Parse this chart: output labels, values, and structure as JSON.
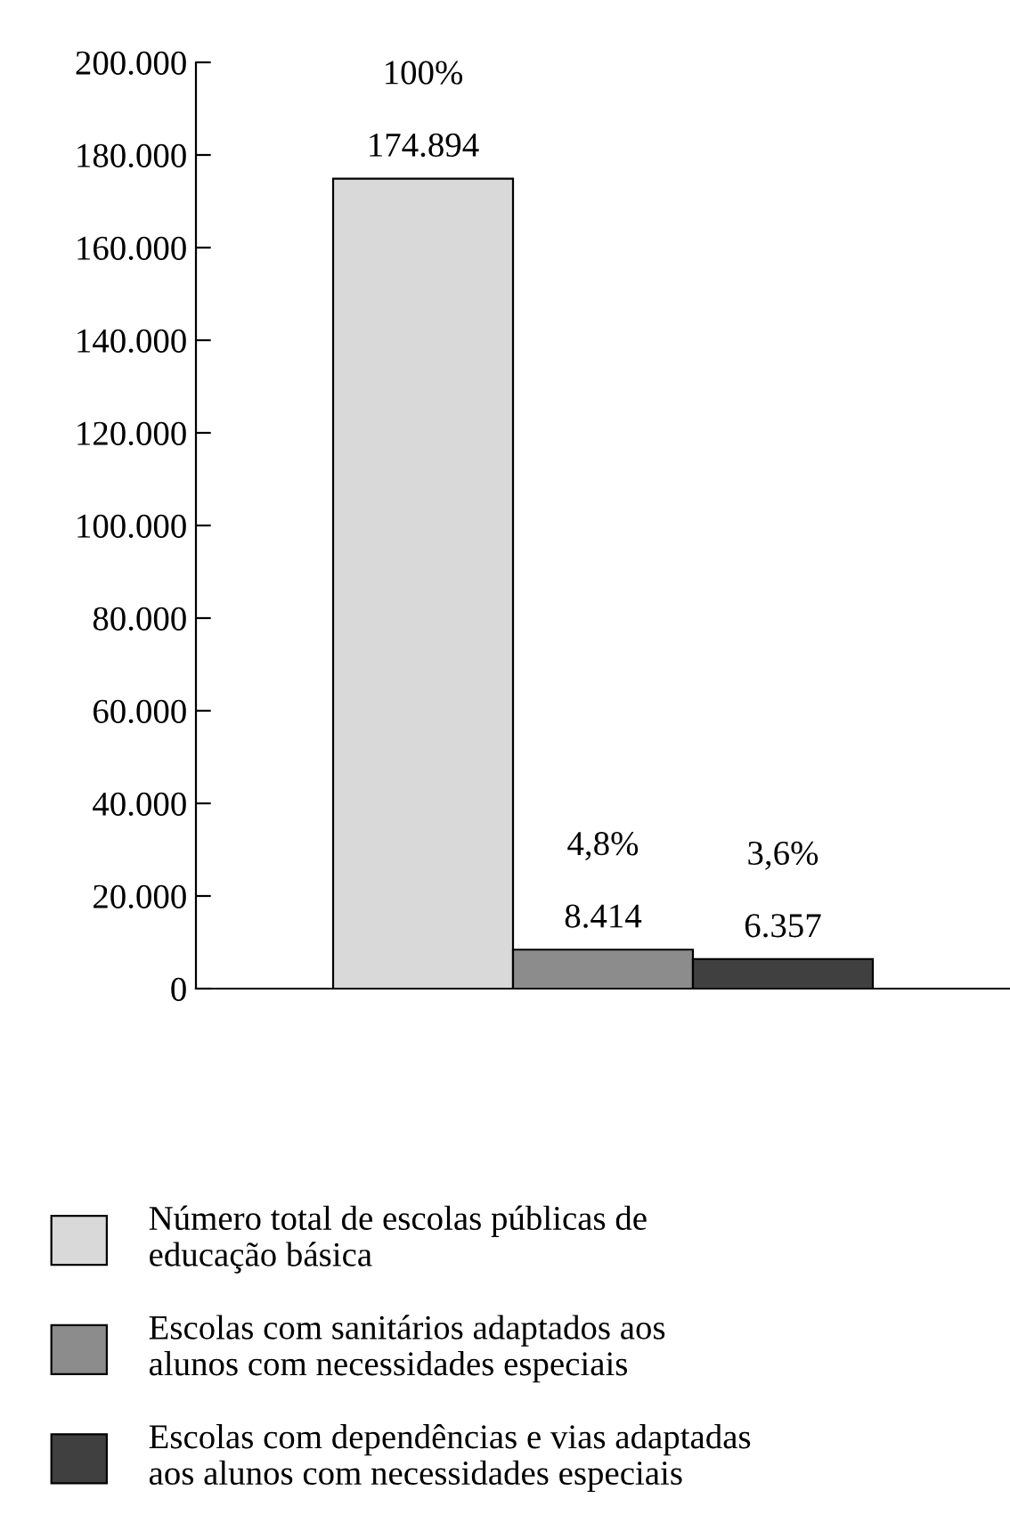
{
  "chart_data": {
    "type": "bar",
    "categories": [
      null
    ],
    "series": [
      {
        "name": "Número total de escolas públicas de\neducação básica",
        "color": "#d9d9d9",
        "values": [
          174894
        ],
        "value_labels": [
          "100%\n\n174.894"
        ]
      },
      {
        "name": "Escolas com sanitários adaptados aos\nalunos com necessidades especiais",
        "color": "#8c8c8c",
        "values": [
          8414
        ],
        "value_labels": [
          "4,8%\n\n8.414"
        ]
      },
      {
        "name": "Escolas com dependências e vias adaptadas\naos alunos com necessidades especiais",
        "color": "#404040",
        "values": [
          6357
        ],
        "value_labels": [
          "3,6%\n\n6.357"
        ]
      }
    ],
    "ylim": [
      0,
      200000
    ],
    "yticks": [
      {
        "value": 0,
        "label": "0"
      },
      {
        "value": 20000,
        "label": "20.000"
      },
      {
        "value": 40000,
        "label": "40.000"
      },
      {
        "value": 60000,
        "label": "60.000"
      },
      {
        "value": 80000,
        "label": "80.000"
      },
      {
        "value": 100000,
        "label": "100.000"
      },
      {
        "value": 120000,
        "label": "120.000"
      },
      {
        "value": 140000,
        "label": "140.000"
      },
      {
        "value": 160000,
        "label": "160.000"
      },
      {
        "value": 180000,
        "label": "180.000"
      },
      {
        "value": 200000,
        "label": "200.000"
      }
    ],
    "grid": false,
    "legend": "bottom"
  }
}
